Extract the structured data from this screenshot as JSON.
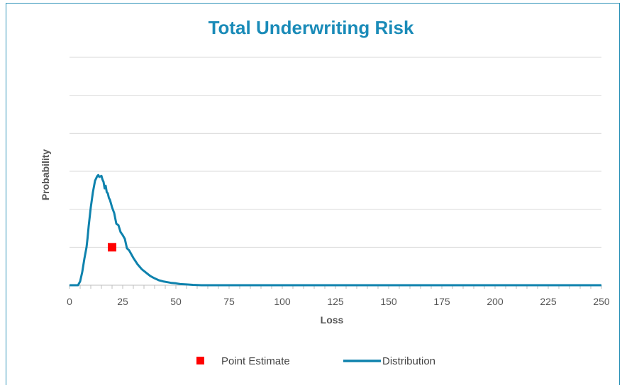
{
  "chart_data": {
    "type": "line",
    "title": "Total Underwriting Risk",
    "xlabel": "Loss",
    "ylabel": "Probability",
    "xlim": [
      0,
      250
    ],
    "ylim": [
      0,
      6
    ],
    "x_ticks": [
      0,
      25,
      50,
      75,
      100,
      125,
      150,
      175,
      200,
      225,
      250
    ],
    "y_tick_labels_visible": false,
    "grid": "horizontal",
    "legend_position": "bottom",
    "series": [
      {
        "name": "Point Estimate",
        "type": "scatter",
        "color": "#ff0000",
        "x": [
          20
        ],
        "y": [
          1.0
        ]
      },
      {
        "name": "Distribution",
        "type": "line",
        "color": "#0e82ad",
        "x": [
          0,
          4,
          5,
          6,
          7,
          8,
          8.5,
          9,
          10,
          11,
          12,
          13,
          13.5,
          14,
          15,
          15.5,
          16,
          16.5,
          17,
          17.5,
          18,
          18.5,
          19,
          20,
          21,
          22,
          23,
          24,
          25,
          26,
          27,
          28,
          29,
          30,
          32,
          34,
          36,
          38,
          40,
          42,
          44,
          46,
          48,
          50,
          52,
          55,
          58,
          62,
          70,
          100,
          150,
          200,
          250
        ],
        "y": [
          0,
          0,
          0.1,
          0.35,
          0.7,
          1.0,
          1.25,
          1.55,
          2.05,
          2.45,
          2.75,
          2.87,
          2.9,
          2.85,
          2.88,
          2.78,
          2.72,
          2.55,
          2.62,
          2.45,
          2.42,
          2.3,
          2.25,
          2.05,
          1.9,
          1.62,
          1.58,
          1.4,
          1.32,
          1.22,
          0.97,
          0.92,
          0.82,
          0.72,
          0.55,
          0.42,
          0.33,
          0.24,
          0.18,
          0.13,
          0.1,
          0.08,
          0.06,
          0.05,
          0.03,
          0.02,
          0.01,
          0,
          0,
          0,
          0,
          0,
          0
        ]
      }
    ]
  }
}
